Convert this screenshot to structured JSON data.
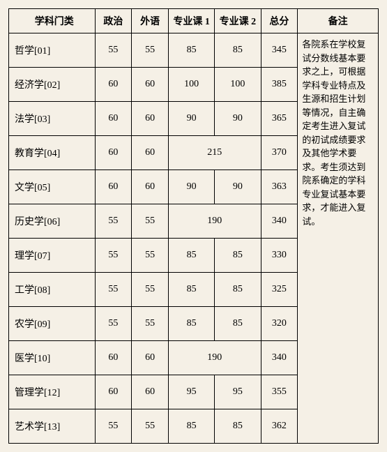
{
  "headers": {
    "subject": "学科门类",
    "politics": "政治",
    "foreign": "外语",
    "major1": "专业课 1",
    "major2": "专业课 2",
    "total": "总分",
    "note": "备注"
  },
  "rows": [
    {
      "subject": "哲学[01]",
      "politics": "55",
      "foreign": "55",
      "major1": "85",
      "major2": "85",
      "total": "345",
      "merged": false
    },
    {
      "subject": "经济学[02]",
      "politics": "60",
      "foreign": "60",
      "major1": "100",
      "major2": "100",
      "total": "385",
      "merged": false
    },
    {
      "subject": "法学[03]",
      "politics": "60",
      "foreign": "60",
      "major1": "90",
      "major2": "90",
      "total": "365",
      "merged": false
    },
    {
      "subject": "教育学[04]",
      "politics": "60",
      "foreign": "60",
      "major1": "215",
      "major2": "",
      "total": "370",
      "merged": true
    },
    {
      "subject": "文学[05]",
      "politics": "60",
      "foreign": "60",
      "major1": "90",
      "major2": "90",
      "total": "363",
      "merged": false
    },
    {
      "subject": "历史学[06]",
      "politics": "55",
      "foreign": "55",
      "major1": "190",
      "major2": "",
      "total": "340",
      "merged": true
    },
    {
      "subject": "理学[07]",
      "politics": "55",
      "foreign": "55",
      "major1": "85",
      "major2": "85",
      "total": "330",
      "merged": false
    },
    {
      "subject": "工学[08]",
      "politics": "55",
      "foreign": "55",
      "major1": "85",
      "major2": "85",
      "total": "325",
      "merged": false
    },
    {
      "subject": "农学[09]",
      "politics": "55",
      "foreign": "55",
      "major1": "85",
      "major2": "85",
      "total": "320",
      "merged": false
    },
    {
      "subject": "医学[10]",
      "politics": "60",
      "foreign": "60",
      "major1": "190",
      "major2": "",
      "total": "340",
      "merged": true
    },
    {
      "subject": "管理学[12]",
      "politics": "60",
      "foreign": "60",
      "major1": "95",
      "major2": "95",
      "total": "355",
      "merged": false
    },
    {
      "subject": "艺术学[13]",
      "politics": "55",
      "foreign": "55",
      "major1": "85",
      "major2": "85",
      "total": "362",
      "merged": false
    }
  ],
  "note_text": "各院系在学校复试分数线基本要求之上，可根据学科专业特点及生源和招生计划等情况，自主确定考生进入复试的初试成绩要求及其他学术要求。考生须达到院系确定的学科专业复试基本要求，才能进入复试。",
  "colors": {
    "background": "#f5f0e6",
    "border": "#000000",
    "text": "#000000"
  }
}
